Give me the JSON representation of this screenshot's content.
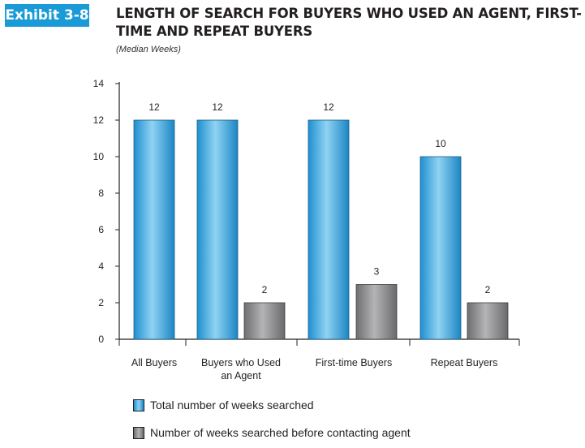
{
  "header": {
    "exhibit_label": "Exhibit 3-8",
    "title": "LENGTH OF SEARCH FOR BUYERS WHO USED AN AGENT, FIRST-TIME AND REPEAT BUYERS",
    "subtitle": "(Median Weeks)"
  },
  "colors": {
    "accent": "#1a9ad6",
    "series_total": "#4bb3e4",
    "series_before_agent": "#8a8a8c"
  },
  "chart_data": {
    "type": "bar",
    "categories": [
      "All Buyers",
      "Buyers who Used an Agent",
      "First-time Buyers",
      "Repeat Buyers"
    ],
    "category_lines": [
      [
        "All Buyers"
      ],
      [
        "Buyers who Used",
        "an Agent"
      ],
      [
        "First-time Buyers"
      ],
      [
        "Repeat Buyers"
      ]
    ],
    "series": [
      {
        "name": "Total number of weeks searched",
        "values": [
          12,
          12,
          12,
          10
        ]
      },
      {
        "name": "Number of weeks searched before contacting agent",
        "values": [
          null,
          2,
          3,
          2
        ]
      }
    ],
    "ylim": [
      0,
      14
    ],
    "yticks": [
      0,
      2,
      4,
      6,
      8,
      10,
      12,
      14
    ],
    "grid": false,
    "legend_position": "bottom"
  },
  "legend": [
    {
      "label": "Total number of weeks searched"
    },
    {
      "label": "Number of weeks searched before contacting agent"
    }
  ]
}
